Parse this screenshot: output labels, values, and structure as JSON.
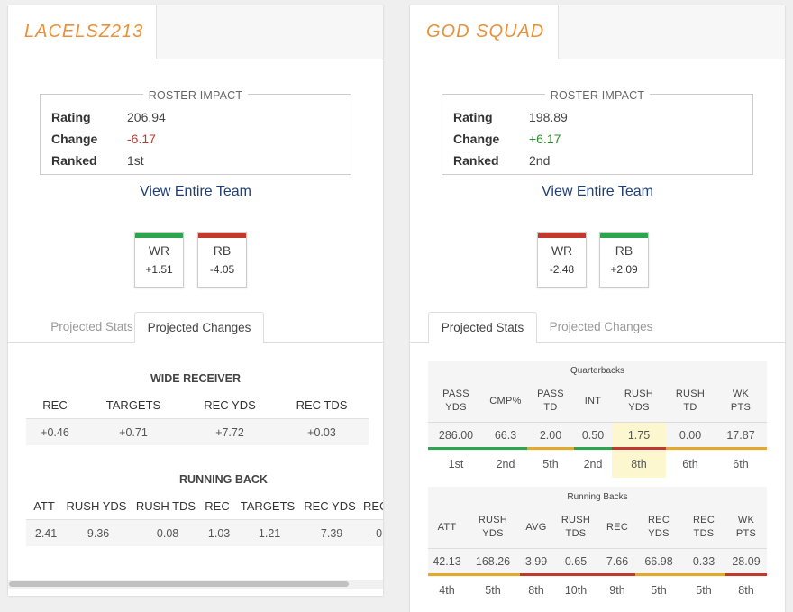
{
  "colors": {
    "accent": "#e8913a",
    "link": "#1e3f7a",
    "good": "#2ea44f",
    "mid": "#e3a92b",
    "bad": "#c0392b",
    "highlight": "#fdf7cf"
  },
  "left": {
    "team_name": "LACELSZ213",
    "impact": {
      "title": "ROSTER IMPACT",
      "rating_label": "Rating",
      "rating": "206.94",
      "change_label": "Change",
      "change": "-6.17",
      "ranked_label": "Ranked",
      "ranked": "1st"
    },
    "view_team": "View Entire Team",
    "positions": [
      {
        "name": "WR",
        "value": "+1.51",
        "status": "green"
      },
      {
        "name": "RB",
        "value": "-4.05",
        "status": "red"
      }
    ],
    "tabs": [
      {
        "label": "Projected Stats"
      },
      {
        "label": "Projected Changes",
        "active": true
      }
    ],
    "wr": {
      "title": "WIDE RECEIVER",
      "headers": [
        "REC",
        "TARGETS",
        "REC YDS",
        "REC TDS"
      ],
      "values": [
        "+0.46",
        "+0.71",
        "+7.72",
        "+0.03"
      ]
    },
    "rb": {
      "title": "RUNNING BACK",
      "headers": [
        "ATT",
        "RUSH YDS",
        "RUSH TDS",
        "REC",
        "TARGETS",
        "REC YDS",
        "REC"
      ],
      "values": [
        "-2.41",
        "-9.36",
        "-0.08",
        "-1.03",
        "-1.21",
        "-7.39",
        "-0"
      ]
    }
  },
  "right": {
    "team_name": "GOD SQUAD",
    "impact": {
      "title": "ROSTER IMPACT",
      "rating_label": "Rating",
      "rating": "198.89",
      "change_label": "Change",
      "change": "+6.17",
      "ranked_label": "Ranked",
      "ranked": "2nd"
    },
    "view_team": "View Entire Team",
    "positions": [
      {
        "name": "WR",
        "value": "-2.48",
        "status": "red"
      },
      {
        "name": "RB",
        "value": "+2.09",
        "status": "green"
      }
    ],
    "tabs": [
      {
        "label": "Projected Stats",
        "active": true
      },
      {
        "label": "Projected Changes"
      }
    ],
    "qb": {
      "title": "Quarterbacks",
      "headers": [
        [
          "PASS",
          "YDS"
        ],
        [
          "CMP%",
          ""
        ],
        [
          "PASS",
          "TD"
        ],
        [
          "INT",
          ""
        ],
        [
          "RUSH",
          "YDS"
        ],
        [
          "RUSH",
          "TD"
        ],
        [
          "WK",
          "PTS"
        ]
      ],
      "values": [
        "286.00",
        "66.3",
        "2.00",
        "0.50",
        "1.75",
        "0.00",
        "17.87"
      ],
      "ranks": [
        "1st",
        "2nd",
        "5th",
        "2nd",
        "8th",
        "6th",
        "6th"
      ],
      "bar_colors": [
        "good",
        "good",
        "mid",
        "good",
        "bad",
        "mid",
        "mid"
      ],
      "highlight_col": 4
    },
    "rb": {
      "title": "Running Backs",
      "headers": [
        [
          "ATT",
          ""
        ],
        [
          "RUSH",
          "YDS"
        ],
        [
          "AVG",
          ""
        ],
        [
          "RUSH",
          "TDS"
        ],
        [
          "REC",
          ""
        ],
        [
          "REC",
          "YDS"
        ],
        [
          "REC",
          "TDS"
        ],
        [
          "WK",
          "PTS"
        ]
      ],
      "values": [
        "42.13",
        "168.26",
        "3.99",
        "0.65",
        "7.66",
        "66.98",
        "0.33",
        "28.09"
      ],
      "ranks": [
        "4th",
        "5th",
        "8th",
        "10th",
        "9th",
        "5th",
        "5th",
        "8th"
      ],
      "bar_colors": [
        "mid",
        "mid",
        "bad",
        "bad",
        "bad",
        "mid",
        "mid",
        "bad"
      ]
    }
  }
}
